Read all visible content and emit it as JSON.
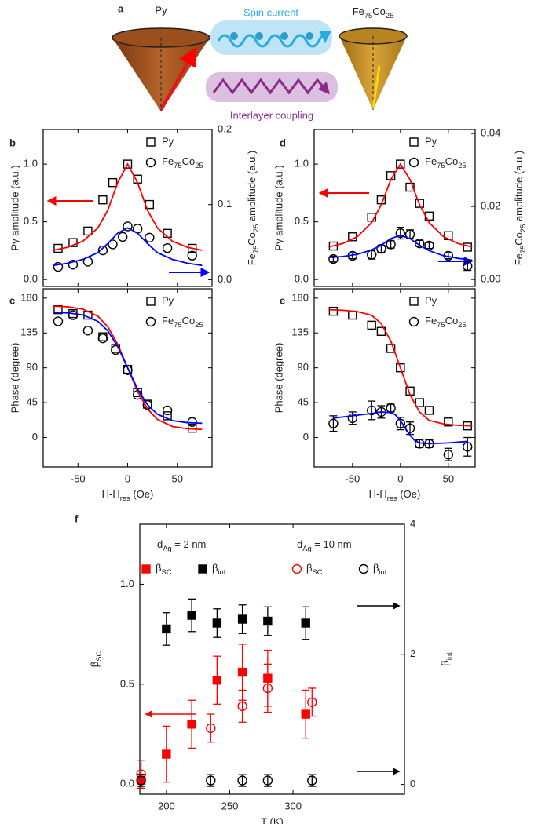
{
  "diagram": {
    "label": "a",
    "left_layer": "Py",
    "right_layer": [
      "Fe",
      "75",
      "Co",
      "25"
    ],
    "spin_current": "Spin current",
    "coupling": "Interlayer coupling"
  },
  "chart_data": [
    {
      "type": "scatter",
      "panel": "b",
      "ylabel": "Py amplitude (a.u.)",
      "y2label": [
        "Fe",
        "75",
        "Co",
        "25",
        " amplitude (a.u.)"
      ],
      "xlim": [
        -85,
        85
      ],
      "xticks": [
        -50,
        0,
        50
      ],
      "xtick_labels": false,
      "ylim": [
        -0.06,
        1.3
      ],
      "yticks": [
        {
          "value": 0,
          "label": "0.0"
        },
        0.5,
        {
          "value": 1,
          "label": "1.0"
        }
      ],
      "y2lim": [
        -0.009,
        0.2
      ],
      "y2ticks": [
        {
          "value": 0,
          "label": "0.0"
        },
        0.1,
        0.2
      ],
      "legend": "upper right",
      "series": [
        {
          "name": "Py",
          "marker": "square",
          "color": "#000000",
          "x": [
            -70,
            -55,
            -40,
            -25,
            -15,
            0,
            10,
            22,
            40,
            65
          ],
          "values": [
            0.27,
            0.32,
            0.42,
            0.69,
            0.84,
            1.0,
            0.87,
            0.65,
            0.4,
            0.27
          ]
        },
        {
          "name": [
            "Fe",
            "75",
            "Co",
            "25"
          ],
          "marker": "circle",
          "color": "#000000",
          "axis": "y2",
          "x": [
            -70,
            -55,
            -40,
            -25,
            -15,
            -5,
            0,
            10,
            22,
            40,
            65
          ],
          "values": [
            0.017,
            0.02,
            0.024,
            0.039,
            0.047,
            0.057,
            0.071,
            0.068,
            0.056,
            0.042,
            0.032
          ]
        },
        {
          "marker": "line",
          "color": "#ff0000",
          "x": [
            -75,
            -60,
            -45,
            -30,
            -20,
            -10,
            0,
            10,
            20,
            30,
            45,
            60,
            75
          ],
          "values": [
            0.253,
            0.28,
            0.332,
            0.446,
            0.6,
            0.84,
            1.0,
            0.84,
            0.6,
            0.446,
            0.332,
            0.28,
            0.253
          ]
        },
        {
          "marker": "line",
          "color": "#0000ff",
          "axis": "y2",
          "x": [
            -75,
            -60,
            -45,
            -30,
            -20,
            -10,
            0,
            10,
            20,
            30,
            45,
            60,
            75
          ],
          "values": [
            0.019,
            0.022,
            0.027,
            0.036,
            0.048,
            0.062,
            0.069,
            0.062,
            0.048,
            0.036,
            0.027,
            0.022,
            0.019
          ]
        }
      ]
    },
    {
      "type": "scatter",
      "panel": "c",
      "ylabel": "Phase (degree)",
      "xlabel": [
        "H-H",
        "res",
        " (Oe)"
      ],
      "xlim": [
        -85,
        85
      ],
      "xticks": [
        -50,
        0,
        50
      ],
      "ylim": [
        -38,
        192
      ],
      "yticks": [
        0,
        45,
        90,
        135,
        180
      ],
      "legend": "upper right",
      "series": [
        {
          "name": "Py",
          "marker": "square",
          "color": "#000000",
          "x": [
            -70,
            -55,
            -40,
            -25,
            -12,
            0,
            10,
            20,
            40,
            65
          ],
          "values": [
            165,
            160,
            158,
            130,
            115,
            88,
            58,
            43,
            28,
            12
          ]
        },
        {
          "name": [
            "Fe",
            "75",
            "Co",
            "25"
          ],
          "marker": "circle",
          "color": "#000000",
          "x": [
            -70,
            -55,
            -40,
            -25,
            -12,
            0,
            10,
            20,
            40,
            65
          ],
          "values": [
            150,
            158,
            138,
            128,
            113,
            87,
            55,
            42,
            35,
            20
          ]
        },
        {
          "marker": "line",
          "color": "#ff0000",
          "x": [
            -75,
            -60,
            -45,
            -30,
            -20,
            -10,
            0,
            10,
            20,
            30,
            45,
            60,
            75
          ],
          "values": [
            169.6,
            168.7,
            165.8,
            156.7,
            143.1,
            120.4,
            90,
            59.6,
            36.9,
            23.3,
            14.2,
            11.3,
            10.4
          ]
        },
        {
          "marker": "line",
          "color": "#0000ff",
          "x": [
            -75,
            -60,
            -45,
            -30,
            -20,
            -10,
            0,
            10,
            20,
            30,
            45,
            60,
            75
          ],
          "values": [
            161.6,
            160.8,
            158.2,
            150.0,
            137.8,
            117.4,
            90,
            62.6,
            42.2,
            30.0,
            21.8,
            19.2,
            18.4
          ]
        }
      ]
    },
    {
      "type": "scatter",
      "panel": "d",
      "ylabel": "Py amplitude (a.u.)",
      "y2label": [
        "Fe",
        "75",
        "Co",
        "25",
        " amplitude (a.u.)"
      ],
      "xlim": [
        -90,
        78
      ],
      "xticks": [
        -50,
        0,
        50
      ],
      "xtick_labels": false,
      "ylim": [
        -0.06,
        1.3
      ],
      "yticks": [
        {
          "value": 0,
          "label": "0.0"
        },
        0.5,
        {
          "value": 1,
          "label": "1.0"
        }
      ],
      "y2lim": [
        -0.0019,
        0.0411
      ],
      "y2ticks": [
        {
          "value": 0,
          "label": "0.00"
        },
        0.02,
        0.04
      ],
      "legend": "upper right",
      "series": [
        {
          "name": "Py",
          "marker": "square",
          "color": "#000000",
          "x": [
            -70,
            -50,
            -30,
            -20,
            -10,
            0,
            10,
            20,
            30,
            50,
            70
          ],
          "values": [
            0.29,
            0.37,
            0.54,
            0.69,
            0.9,
            1.0,
            0.8,
            0.66,
            0.55,
            0.38,
            0.28
          ]
        },
        {
          "name": [
            "Fe",
            "75",
            "Co",
            "25"
          ],
          "marker": "circle",
          "color": "#000000",
          "axis": "y2",
          "x": [
            -70,
            -50,
            -30,
            -20,
            -10,
            0,
            10,
            20,
            30,
            50,
            70
          ],
          "values": [
            0.0056,
            0.0065,
            0.0068,
            0.0084,
            0.0096,
            0.0127,
            0.0124,
            0.0099,
            0.0093,
            0.0065,
            0.0037
          ],
          "errors": [
            0.0008,
            0.0008,
            0.0012,
            0.001,
            0.001,
            0.0016,
            0.0012,
            0.0008,
            0.0008,
            0.0008,
            0.0012
          ]
        },
        {
          "marker": "line",
          "color": "#ff0000",
          "x": [
            -75,
            -60,
            -45,
            -30,
            -20,
            -10,
            0,
            10,
            20,
            30,
            45,
            60,
            75
          ],
          "values": [
            0.282,
            0.312,
            0.371,
            0.493,
            0.647,
            0.866,
            1.0,
            0.866,
            0.647,
            0.493,
            0.371,
            0.312,
            0.282
          ]
        },
        {
          "marker": "line",
          "color": "#0000ff",
          "axis": "y2",
          "x": [
            -75,
            -60,
            -45,
            -30,
            -20,
            -10,
            0,
            10,
            20,
            30,
            45,
            60,
            75
          ],
          "values": [
            0.006,
            0.0063,
            0.0069,
            0.0081,
            0.0094,
            0.0112,
            0.0121,
            0.0112,
            0.0094,
            0.0079,
            0.0065,
            0.0058,
            0.0053
          ]
        }
      ]
    },
    {
      "type": "scatter",
      "panel": "e",
      "ylabel": "Phase (degree)",
      "xlabel": [
        "H-H",
        "res",
        " (Oe)"
      ],
      "xlim": [
        -90,
        78
      ],
      "xticks": [
        -50,
        0,
        50
      ],
      "ylim": [
        -38,
        192
      ],
      "yticks": [
        0,
        45,
        90,
        135,
        180
      ],
      "legend": "upper right",
      "series": [
        {
          "name": "Py",
          "marker": "square",
          "color": "#000000",
          "x": [
            -70,
            -50,
            -30,
            -20,
            -10,
            0,
            10,
            20,
            30,
            50,
            70
          ],
          "values": [
            163,
            158,
            145,
            137,
            115,
            90,
            60,
            45,
            35,
            20,
            15
          ]
        },
        {
          "name": [
            "Fe",
            "75",
            "Co",
            "25"
          ],
          "marker": "circle",
          "color": "#000000",
          "x": [
            -70,
            -50,
            -30,
            -20,
            -10,
            0,
            10,
            20,
            30,
            50,
            70
          ],
          "values": [
            18,
            25,
            35,
            33,
            38,
            18,
            12,
            -8,
            -8,
            -22,
            -12
          ],
          "errors": [
            10,
            8,
            12,
            8,
            5,
            8,
            8,
            5,
            5,
            8,
            12
          ]
        },
        {
          "marker": "line",
          "color": "#ff0000",
          "x": [
            -75,
            -60,
            -45,
            -30,
            -20,
            -10,
            0,
            10,
            20,
            30,
            45,
            60,
            75
          ],
          "values": [
            165,
            164.3,
            162.5,
            157.9,
            147.1,
            124.6,
            90,
            55.4,
            32.9,
            22.1,
            17.5,
            15.7,
            15.0
          ]
        },
        {
          "marker": "line",
          "color": "#0000ff",
          "x": [
            -70,
            -50,
            -30,
            -20,
            -10,
            -5,
            0,
            5,
            10,
            15,
            20,
            30,
            50,
            70
          ],
          "values": [
            25,
            28,
            31,
            33,
            32,
            29,
            22,
            12,
            3,
            -4,
            -7,
            -8,
            -7,
            -5
          ]
        }
      ]
    },
    {
      "type": "scatter",
      "panel": "f",
      "ylabel": [
        "β",
        "SC"
      ],
      "y2label": [
        "β",
        "int"
      ],
      "xlabel": "T (K)",
      "xlim": [
        179,
        388
      ],
      "xticks": [
        200,
        250,
        300
      ],
      "ylim": [
        -0.05,
        1.3
      ],
      "yticks": [
        {
          "value": 0,
          "label": "0.0"
        },
        0.5,
        {
          "value": 1,
          "label": "1.0"
        }
      ],
      "y2lim": [
        -0.15,
        4
      ],
      "y2ticks": [
        0,
        2,
        4
      ],
      "legend": "top row",
      "annotations": [
        [
          "d",
          "Ag",
          " = 2 nm"
        ],
        [
          "d",
          "Ag",
          " = 10 nm"
        ]
      ],
      "series": [
        {
          "name": [
            "β",
            "SC"
          ],
          "marker": "square",
          "filled": true,
          "color": "#ff0000",
          "x": [
            180,
            200,
            220,
            240,
            260,
            280,
            310
          ],
          "values": [
            0.02,
            0.15,
            0.3,
            0.52,
            0.56,
            0.53,
            0.35
          ],
          "errors": [
            0.03,
            0.14,
            0.12,
            0.12,
            0.14,
            0.14,
            0.12
          ]
        },
        {
          "name": [
            "β",
            "int"
          ],
          "marker": "square",
          "filled": true,
          "color": "#000000",
          "axis": "y2",
          "x": [
            200,
            220,
            240,
            260,
            280,
            310
          ],
          "values": [
            2.39,
            2.6,
            2.48,
            2.54,
            2.51,
            2.48
          ],
          "errors": [
            0.25,
            0.25,
            0.22,
            0.22,
            0.22,
            0.25
          ]
        },
        {
          "name": [
            "β",
            "SC"
          ],
          "marker": "circle",
          "color": "#ff0000",
          "x": [
            180,
            235,
            260,
            280,
            315
          ],
          "values": [
            0.05,
            0.28,
            0.39,
            0.48,
            0.41
          ],
          "errors": [
            0.07,
            0.07,
            0.08,
            0.12,
            0.07
          ]
        },
        {
          "name": [
            "β",
            "int"
          ],
          "marker": "circle",
          "color": "#000000",
          "axis": "y2",
          "x": [
            180,
            235,
            260,
            280,
            315
          ],
          "values": [
            0.06,
            0.06,
            0.06,
            0.06,
            0.06
          ],
          "errors": [
            0.09,
            0.09,
            0.09,
            0.09,
            0.09
          ]
        }
      ]
    }
  ]
}
